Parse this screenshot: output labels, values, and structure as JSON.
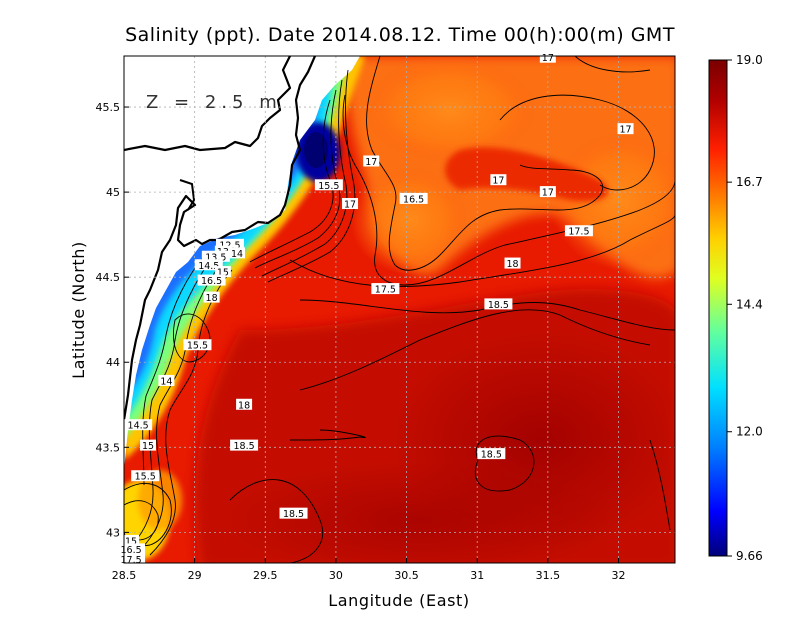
{
  "chart_data": {
    "type": "heatmap",
    "title": "Salinity (ppt). Date 2014.08.12. Time 00(h):00(m) GMT",
    "xlabel": "Langitude (East)",
    "ylabel": "Latitude (North)",
    "depth_label": "Z = 2.5 m",
    "xlim": [
      28.5,
      32.4
    ],
    "ylim": [
      42.82,
      45.8
    ],
    "x_ticks": [
      "28.5",
      "29",
      "29.5",
      "30",
      "30.5",
      "31",
      "31.5",
      "32"
    ],
    "x_tick_values": [
      28.5,
      29,
      29.5,
      30,
      30.5,
      31,
      31.5,
      32
    ],
    "y_ticks": [
      "43",
      "43.5",
      "44",
      "44.5",
      "45",
      "45.5"
    ],
    "y_tick_values": [
      43,
      43.5,
      44,
      44.5,
      45,
      45.5
    ],
    "grid": true,
    "colorbar": {
      "min": 9.66,
      "max": 19.0,
      "tick_labels": [
        "19.0",
        "16.7",
        "14.4",
        "12.0",
        "9.66"
      ],
      "tick_values": [
        19.0,
        16.7,
        14.4,
        12.0,
        9.66
      ],
      "colors": [
        "#00007a",
        "#0000ff",
        "#0080ff",
        "#00e0ff",
        "#60ffa0",
        "#e0ff20",
        "#ffd000",
        "#ff8000",
        "#ff2000",
        "#b00000",
        "#7a0000"
      ]
    },
    "contour_labels": [
      {
        "text": "17",
        "lon": 31.5,
        "lat": 45.79
      },
      {
        "text": "17",
        "lon": 32.05,
        "lat": 45.37
      },
      {
        "text": "17",
        "lon": 30.25,
        "lat": 45.18
      },
      {
        "text": "17",
        "lon": 31.15,
        "lat": 45.07
      },
      {
        "text": "17",
        "lon": 31.5,
        "lat": 45.0
      },
      {
        "text": "15.5",
        "lon": 29.95,
        "lat": 45.04
      },
      {
        "text": "17",
        "lon": 30.1,
        "lat": 44.93
      },
      {
        "text": "16.5",
        "lon": 30.55,
        "lat": 44.96
      },
      {
        "text": "17.5",
        "lon": 31.72,
        "lat": 44.77
      },
      {
        "text": "12.5",
        "lon": 29.25,
        "lat": 44.69
      },
      {
        "text": "13",
        "lon": 29.2,
        "lat": 44.65
      },
      {
        "text": "13.5",
        "lon": 29.15,
        "lat": 44.62
      },
      {
        "text": "14",
        "lon": 29.3,
        "lat": 44.64
      },
      {
        "text": "14.5",
        "lon": 29.1,
        "lat": 44.57
      },
      {
        "text": "15",
        "lon": 29.2,
        "lat": 44.53
      },
      {
        "text": "16.5",
        "lon": 29.12,
        "lat": 44.48
      },
      {
        "text": "18",
        "lon": 31.25,
        "lat": 44.58
      },
      {
        "text": "17.5",
        "lon": 30.35,
        "lat": 44.43
      },
      {
        "text": "18",
        "lon": 29.12,
        "lat": 44.38
      },
      {
        "text": "18.5",
        "lon": 31.15,
        "lat": 44.34
      },
      {
        "text": "15.5",
        "lon": 29.02,
        "lat": 44.1
      },
      {
        "text": "14",
        "lon": 28.8,
        "lat": 43.89
      },
      {
        "text": "18",
        "lon": 29.35,
        "lat": 43.75
      },
      {
        "text": "14.5",
        "lon": 28.6,
        "lat": 43.63
      },
      {
        "text": "18.5",
        "lon": 29.35,
        "lat": 43.51
      },
      {
        "text": "15",
        "lon": 28.67,
        "lat": 43.51
      },
      {
        "text": "18.5",
        "lon": 31.1,
        "lat": 43.46
      },
      {
        "text": "15.5",
        "lon": 28.65,
        "lat": 43.33
      },
      {
        "text": "18.5",
        "lon": 29.7,
        "lat": 43.11
      },
      {
        "text": "15",
        "lon": 28.55,
        "lat": 42.95
      },
      {
        "text": "16.5",
        "lon": 28.55,
        "lat": 42.9
      },
      {
        "text": "17.5",
        "lon": 28.55,
        "lat": 42.84
      }
    ]
  }
}
